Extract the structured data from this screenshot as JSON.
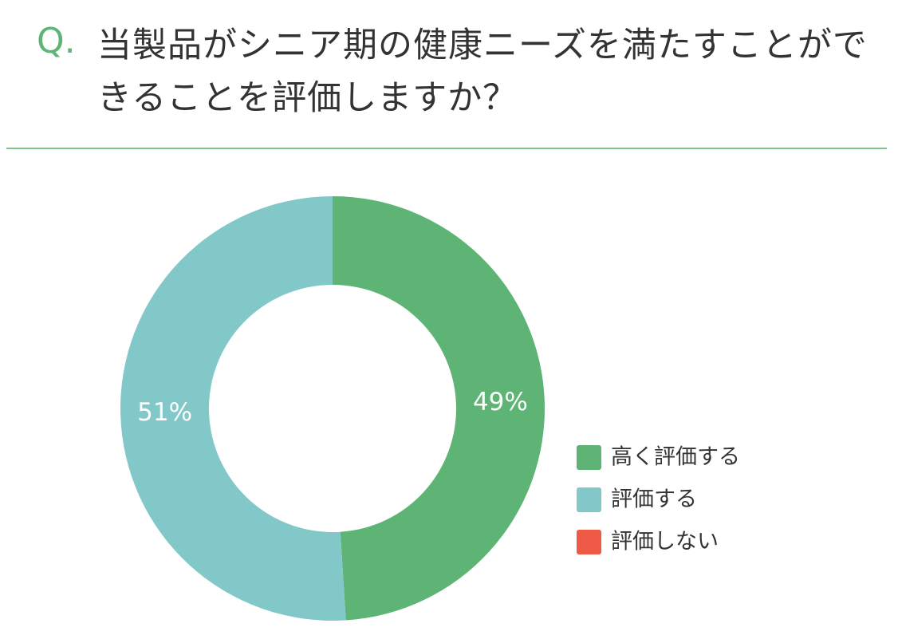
{
  "chart_data": {
    "type": "donut",
    "prefix": "Q.",
    "title": "当製品がシニア期の健康ニーズを満たすことができることを評価しますか？",
    "categories": [
      "高く評価する",
      "評価する",
      "評価しない"
    ],
    "values": [
      49,
      51,
      0
    ],
    "value_labels": [
      "49%",
      "51%",
      null
    ],
    "colors": [
      "#5db474",
      "#82c8c9",
      "#ee5a45"
    ],
    "legend": "right"
  }
}
